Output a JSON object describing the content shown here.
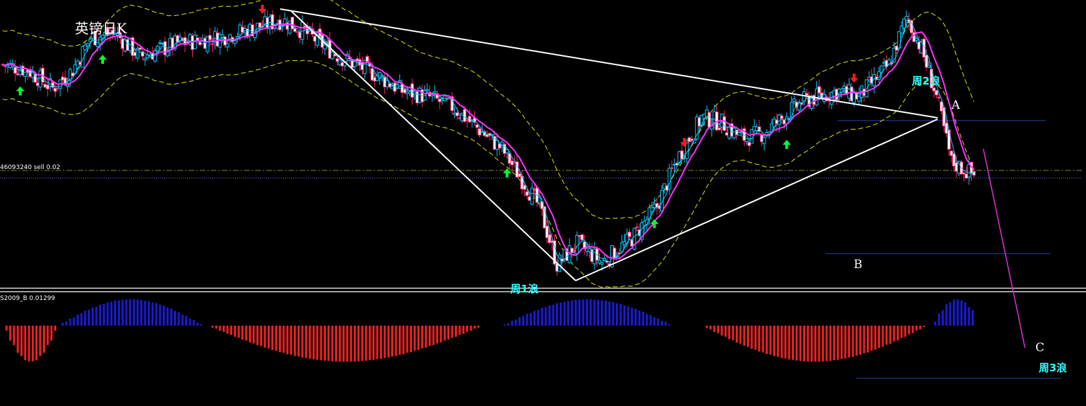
{
  "title": "英镑日K",
  "order_label": "46093240 sell 0.02",
  "indicator_label": "S2009_B 0.01299",
  "wave_labels": {
    "wave1": "周1浪",
    "wave2": "周2浪",
    "wave3": "周3浪"
  },
  "point_labels": {
    "a": "A",
    "b": "B",
    "c": "C"
  },
  "colors": {
    "background": "#000000",
    "bull_candle": "#00ccff",
    "bear_candle": "#ff2a6d",
    "ma_fast": "#ff33ff",
    "ma_slow": "#00d0ff",
    "bollinger": "#e6e600",
    "trendline": "#ffffff",
    "hist_positive": "#1a1ad6",
    "hist_negative": "#ee2222",
    "up_arrow": "#00ff33",
    "down_arrow": "#ff1a1a",
    "wave_text": "#33ffff",
    "level_line": "#2244aa",
    "projection": "#cc33cc"
  },
  "chart_data": {
    "type": "candlestick",
    "close_path": [
      [
        0,
        0.82
      ],
      [
        10,
        0.8
      ],
      [
        20,
        0.73
      ],
      [
        28,
        0.8
      ],
      [
        35,
        0.92
      ],
      [
        45,
        0.94
      ],
      [
        55,
        0.85
      ],
      [
        70,
        0.9
      ],
      [
        90,
        0.93
      ],
      [
        105,
        0.97
      ],
      [
        112,
        0.99
      ],
      [
        120,
        0.95
      ],
      [
        135,
        0.85
      ],
      [
        150,
        0.78
      ],
      [
        160,
        0.72
      ],
      [
        170,
        0.7
      ],
      [
        180,
        0.66
      ],
      [
        200,
        0.5
      ],
      [
        215,
        0.28
      ],
      [
        222,
        0.06
      ],
      [
        230,
        0.14
      ],
      [
        240,
        0.07
      ],
      [
        252,
        0.16
      ],
      [
        262,
        0.28
      ],
      [
        270,
        0.46
      ],
      [
        280,
        0.62
      ],
      [
        288,
        0.6
      ],
      [
        296,
        0.54
      ],
      [
        305,
        0.56
      ],
      [
        320,
        0.68
      ],
      [
        335,
        0.72
      ],
      [
        343,
        0.7
      ],
      [
        355,
        0.82
      ],
      [
        362,
        1.0
      ],
      [
        368,
        0.88
      ],
      [
        374,
        0.7
      ],
      [
        380,
        0.45
      ],
      [
        389,
        0.4
      ]
    ],
    "open_level_price_fraction": 0.5,
    "waves": [
      {
        "name_key": "wave1",
        "direction": "down"
      },
      {
        "name_key": "wave2",
        "direction": "up"
      },
      {
        "name_key": "wave3",
        "direction": "down"
      }
    ],
    "signals": [
      {
        "type": "buy",
        "index": 7
      },
      {
        "type": "buy",
        "index": 40
      },
      {
        "type": "sell",
        "index": 104
      },
      {
        "type": "buy",
        "index": 202
      },
      {
        "type": "sell",
        "index": 273
      },
      {
        "type": "buy",
        "index": 261
      },
      {
        "type": "sell",
        "index": 341
      },
      {
        "type": "buy",
        "index": 314
      }
    ],
    "histogram": {
      "bands": [
        [
          0,
          22,
          "neg"
        ],
        [
          22,
          80,
          "pos"
        ],
        [
          82,
          192,
          "neg"
        ],
        [
          200,
          268,
          "pos"
        ],
        [
          280,
          370,
          "neg"
        ],
        [
          372,
          392,
          "pos"
        ]
      ]
    }
  }
}
